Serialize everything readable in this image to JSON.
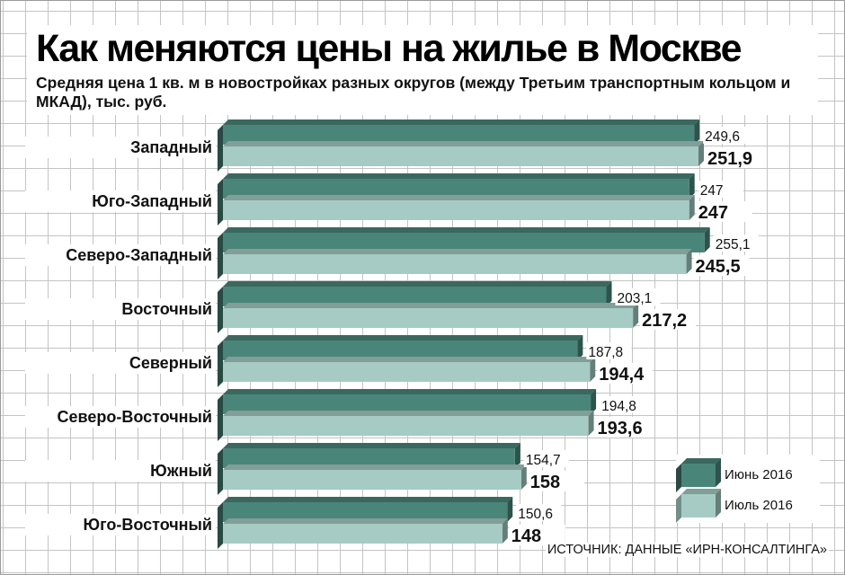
{
  "title": "Как меняются цены на жилье в Москве",
  "subtitle": "Средняя цена 1 кв. м в новостройках разных округов (между Третьим транспортным кольцом и МКАД), тыс. руб.",
  "source": "ИСТОЧНИК: ДАННЫЕ «ИРН-КОНСАЛТИНГА»",
  "colors": {
    "june": "#4a857a",
    "july": "#a5cbc4"
  },
  "chart_data": {
    "type": "bar",
    "orientation": "horizontal",
    "categories": [
      "Западный",
      "Юго-Западный",
      "Северо-Западный",
      "Восточный",
      "Северный",
      "Северо-Восточный",
      "Южный",
      "Юго-Восточный"
    ],
    "series": [
      {
        "name": "Июнь 2016",
        "values": [
          249.6,
          247,
          255.1,
          203.1,
          187.8,
          194.8,
          154.7,
          150.6
        ],
        "labels": [
          "249,6",
          "247",
          "255,1",
          "203,1",
          "187,8",
          "194,8",
          "154,7",
          "150,6"
        ]
      },
      {
        "name": "Июль 2016",
        "values": [
          251.9,
          247,
          245.5,
          217.2,
          194.4,
          193.6,
          158,
          148
        ],
        "labels": [
          "251,9",
          "247",
          "245,5",
          "217,2",
          "194,4",
          "193,6",
          "158",
          "148"
        ]
      }
    ],
    "legend_position": "bottom-right",
    "grid": true
  }
}
